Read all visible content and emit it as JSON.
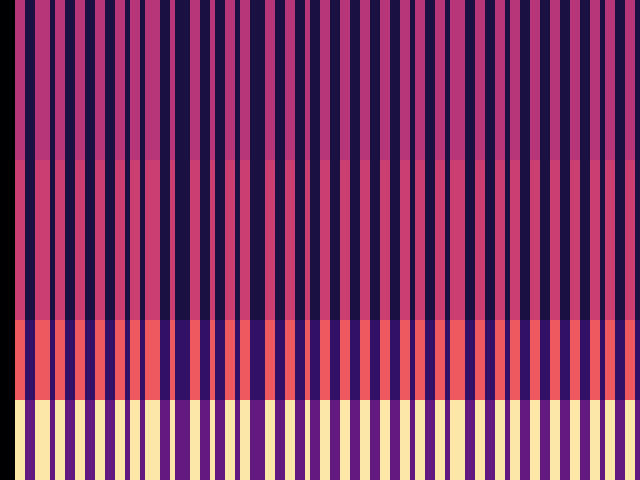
{
  "chart_data": {
    "type": "heatmap",
    "tick_labels": false,
    "value_range": [
      0,
      1
    ],
    "cells": [
      [
        0,
        0,
        0,
        0.95,
        0.95,
        0.3,
        0.3,
        0.95,
        0.95,
        0.95,
        0.3,
        0.95,
        0.95,
        0.3,
        0.3,
        0.95,
        0.95,
        0.3,
        0.3,
        0.95,
        0.95,
        0.3,
        0.3,
        0.95,
        0.95,
        0.3,
        0.95,
        0.95,
        0.3,
        0.95,
        0.95,
        0.95,
        0.3,
        0.3,
        0.95,
        0.3,
        0.3,
        0.3,
        0.95,
        0.95,
        0.3,
        0.3,
        0.95,
        0.3,
        0.3,
        0.95,
        0.95,
        0.3,
        0.95,
        0.95,
        0.3,
        0.3,
        0.3,
        0.95,
        0.95,
        0.3,
        0.3,
        0.95,
        0.95,
        0.3,
        0.3,
        0.95,
        0.3,
        0.3,
        0.95,
        0.95,
        0.3,
        0.3,
        0.95,
        0.95,
        0.3,
        0.3,
        0.95,
        0.95,
        0.3,
        0.3,
        0.95,
        0.95,
        0.3,
        0.3,
        0.95,
        0.95,
        0.3,
        0.95,
        0.95,
        0.3,
        0.3,
        0.95,
        0.95,
        0.3,
        0.95,
        0.95,
        0.95,
        0.3,
        0.3,
        0.95,
        0.95,
        0.3,
        0.3,
        0.95,
        0.95,
        0.3,
        0.95,
        0.95,
        0.3,
        0.3,
        0.95,
        0.95,
        0.3,
        0.3,
        0.95,
        0.95,
        0.3,
        0.3,
        0.95,
        0.95,
        0.3,
        0.3,
        0.95,
        0.95,
        0.3,
        0.95,
        0.95,
        0.3,
        0.3,
        0.95,
        0.95,
        0.3
      ],
      [
        0,
        0,
        0,
        0.65,
        0.65,
        0.18,
        0.18,
        0.65,
        0.65,
        0.65,
        0.18,
        0.65,
        0.65,
        0.18,
        0.18,
        0.65,
        0.65,
        0.18,
        0.18,
        0.65,
        0.65,
        0.18,
        0.18,
        0.65,
        0.65,
        0.18,
        0.65,
        0.65,
        0.18,
        0.65,
        0.65,
        0.65,
        0.18,
        0.18,
        0.65,
        0.18,
        0.18,
        0.18,
        0.65,
        0.65,
        0.18,
        0.18,
        0.65,
        0.18,
        0.18,
        0.65,
        0.65,
        0.18,
        0.65,
        0.65,
        0.18,
        0.18,
        0.18,
        0.65,
        0.65,
        0.18,
        0.18,
        0.65,
        0.65,
        0.18,
        0.18,
        0.65,
        0.18,
        0.18,
        0.65,
        0.65,
        0.18,
        0.18,
        0.65,
        0.65,
        0.18,
        0.18,
        0.65,
        0.65,
        0.18,
        0.18,
        0.65,
        0.65,
        0.18,
        0.18,
        0.65,
        0.65,
        0.18,
        0.65,
        0.65,
        0.18,
        0.18,
        0.65,
        0.65,
        0.18,
        0.65,
        0.65,
        0.65,
        0.18,
        0.18,
        0.65,
        0.65,
        0.18,
        0.18,
        0.65,
        0.65,
        0.18,
        0.65,
        0.65,
        0.18,
        0.18,
        0.65,
        0.65,
        0.18,
        0.18,
        0.65,
        0.65,
        0.18,
        0.18,
        0.65,
        0.65,
        0.18,
        0.18,
        0.65,
        0.65,
        0.18,
        0.65,
        0.65,
        0.18,
        0.18,
        0.65,
        0.65,
        0.18
      ],
      [
        0,
        0,
        0,
        0.55,
        0.55,
        0.12,
        0.12,
        0.55,
        0.55,
        0.55,
        0.12,
        0.55,
        0.55,
        0.12,
        0.12,
        0.55,
        0.55,
        0.12,
        0.12,
        0.55,
        0.55,
        0.12,
        0.12,
        0.55,
        0.55,
        0.12,
        0.55,
        0.55,
        0.12,
        0.55,
        0.55,
        0.55,
        0.12,
        0.12,
        0.55,
        0.12,
        0.12,
        0.12,
        0.55,
        0.55,
        0.12,
        0.12,
        0.55,
        0.12,
        0.12,
        0.55,
        0.55,
        0.12,
        0.55,
        0.55,
        0.12,
        0.12,
        0.12,
        0.55,
        0.55,
        0.12,
        0.12,
        0.55,
        0.55,
        0.12,
        0.12,
        0.55,
        0.12,
        0.12,
        0.55,
        0.55,
        0.12,
        0.12,
        0.55,
        0.55,
        0.12,
        0.12,
        0.55,
        0.55,
        0.12,
        0.12,
        0.55,
        0.55,
        0.12,
        0.12,
        0.55,
        0.55,
        0.12,
        0.55,
        0.55,
        0.12,
        0.12,
        0.55,
        0.55,
        0.12,
        0.55,
        0.55,
        0.55,
        0.12,
        0.12,
        0.55,
        0.55,
        0.12,
        0.12,
        0.55,
        0.55,
        0.12,
        0.55,
        0.55,
        0.12,
        0.12,
        0.55,
        0.55,
        0.12,
        0.12,
        0.55,
        0.55,
        0.12,
        0.12,
        0.55,
        0.55,
        0.12,
        0.12,
        0.55,
        0.55,
        0.12,
        0.55,
        0.55,
        0.12,
        0.12,
        0.55,
        0.55,
        0.12
      ],
      [
        0,
        0,
        0,
        0.55,
        0.55,
        0.12,
        0.12,
        0.55,
        0.55,
        0.55,
        0.12,
        0.55,
        0.55,
        0.12,
        0.12,
        0.55,
        0.55,
        0.12,
        0.12,
        0.55,
        0.55,
        0.12,
        0.12,
        0.55,
        0.55,
        0.12,
        0.55,
        0.55,
        0.12,
        0.55,
        0.55,
        0.55,
        0.12,
        0.12,
        0.55,
        0.12,
        0.12,
        0.12,
        0.55,
        0.55,
        0.12,
        0.12,
        0.55,
        0.12,
        0.12,
        0.55,
        0.55,
        0.12,
        0.55,
        0.55,
        0.12,
        0.12,
        0.12,
        0.55,
        0.55,
        0.12,
        0.12,
        0.55,
        0.55,
        0.12,
        0.12,
        0.55,
        0.12,
        0.12,
        0.55,
        0.55,
        0.12,
        0.12,
        0.55,
        0.55,
        0.12,
        0.12,
        0.55,
        0.55,
        0.12,
        0.12,
        0.55,
        0.55,
        0.12,
        0.12,
        0.55,
        0.55,
        0.12,
        0.55,
        0.55,
        0.12,
        0.12,
        0.55,
        0.55,
        0.12,
        0.55,
        0.55,
        0.55,
        0.12,
        0.12,
        0.55,
        0.55,
        0.12,
        0.12,
        0.55,
        0.55,
        0.12,
        0.55,
        0.55,
        0.12,
        0.12,
        0.55,
        0.55,
        0.12,
        0.12,
        0.55,
        0.55,
        0.12,
        0.12,
        0.55,
        0.55,
        0.12,
        0.12,
        0.55,
        0.55,
        0.12,
        0.55,
        0.55,
        0.12,
        0.12,
        0.55,
        0.55,
        0.12
      ],
      [
        0,
        0,
        0,
        0.5,
        0.5,
        0.12,
        0.12,
        0.5,
        0.5,
        0.5,
        0.12,
        0.5,
        0.5,
        0.12,
        0.12,
        0.5,
        0.5,
        0.12,
        0.12,
        0.5,
        0.5,
        0.12,
        0.12,
        0.5,
        0.5,
        0.12,
        0.5,
        0.5,
        0.12,
        0.5,
        0.5,
        0.5,
        0.12,
        0.12,
        0.5,
        0.12,
        0.12,
        0.12,
        0.5,
        0.5,
        0.12,
        0.12,
        0.5,
        0.12,
        0.12,
        0.5,
        0.5,
        0.12,
        0.5,
        0.5,
        0.12,
        0.12,
        0.12,
        0.5,
        0.5,
        0.12,
        0.12,
        0.5,
        0.5,
        0.12,
        0.12,
        0.5,
        0.12,
        0.12,
        0.5,
        0.5,
        0.12,
        0.12,
        0.5,
        0.5,
        0.12,
        0.12,
        0.5,
        0.5,
        0.12,
        0.12,
        0.5,
        0.5,
        0.12,
        0.12,
        0.5,
        0.5,
        0.12,
        0.5,
        0.5,
        0.12,
        0.12,
        0.5,
        0.5,
        0.12,
        0.5,
        0.5,
        0.5,
        0.12,
        0.12,
        0.5,
        0.5,
        0.12,
        0.12,
        0.5,
        0.5,
        0.12,
        0.5,
        0.5,
        0.12,
        0.12,
        0.5,
        0.5,
        0.12,
        0.12,
        0.5,
        0.5,
        0.12,
        0.12,
        0.5,
        0.5,
        0.12,
        0.12,
        0.5,
        0.5,
        0.12,
        0.5,
        0.5,
        0.12,
        0.12,
        0.5,
        0.5,
        0.12
      ],
      [
        0,
        0,
        0,
        0.5,
        0.5,
        0.12,
        0.12,
        0.5,
        0.5,
        0.5,
        0.12,
        0.5,
        0.5,
        0.12,
        0.12,
        0.5,
        0.5,
        0.12,
        0.12,
        0.5,
        0.5,
        0.12,
        0.12,
        0.5,
        0.5,
        0.12,
        0.5,
        0.5,
        0.12,
        0.5,
        0.5,
        0.5,
        0.12,
        0.12,
        0.5,
        0.12,
        0.12,
        0.12,
        0.5,
        0.5,
        0.12,
        0.12,
        0.5,
        0.12,
        0.12,
        0.5,
        0.5,
        0.12,
        0.5,
        0.5,
        0.12,
        0.12,
        0.12,
        0.5,
        0.5,
        0.12,
        0.12,
        0.5,
        0.5,
        0.12,
        0.12,
        0.5,
        0.12,
        0.12,
        0.5,
        0.5,
        0.12,
        0.12,
        0.5,
        0.5,
        0.12,
        0.12,
        0.5,
        0.5,
        0.12,
        0.12,
        0.5,
        0.5,
        0.12,
        0.12,
        0.5,
        0.5,
        0.12,
        0.5,
        0.5,
        0.12,
        0.12,
        0.5,
        0.5,
        0.12,
        0.5,
        0.5,
        0.5,
        0.12,
        0.12,
        0.5,
        0.5,
        0.12,
        0.12,
        0.5,
        0.5,
        0.12,
        0.5,
        0.5,
        0.12,
        0.12,
        0.5,
        0.5,
        0.12,
        0.12,
        0.5,
        0.5,
        0.12,
        0.12,
        0.5,
        0.5,
        0.12,
        0.12,
        0.5,
        0.5,
        0.12,
        0.5,
        0.5,
        0.12,
        0.12,
        0.5,
        0.5,
        0.12
      ]
    ]
  }
}
